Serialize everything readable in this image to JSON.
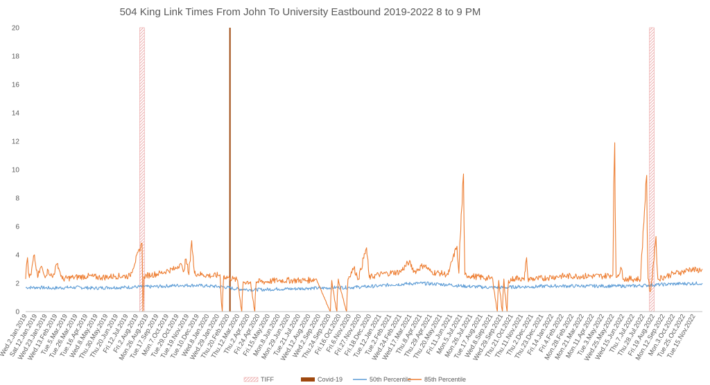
{
  "chart_data": {
    "type": "line",
    "title": "504 King Link Times From John To University Eastbound 2019-2022 8 to 9 PM",
    "xlabel": "",
    "ylabel": "",
    "x_start": "2019-01-02",
    "x_end": "2022-12-31",
    "ylim": [
      0,
      20
    ],
    "yticks": [
      0,
      2,
      4,
      6,
      8,
      10,
      12,
      14,
      16,
      18,
      20
    ],
    "grid": false,
    "legend_position": "bottom",
    "x_tick_labels": [
      "Wed.2.Jan.2019",
      "Sat.12.Jan.2019",
      "Wed.23.Jan.2019",
      "Wed.13.Feb.2019",
      "Tue.5.Mar.2019",
      "Tue.26.Mar.2019",
      "Tue.16.Apr.2019",
      "Wed.8.May.2019",
      "Thu.30.May.2019",
      "Thu.20.Jun.2019",
      "Fri.12.Jul.2019",
      "Fri.2.Aug.2019",
      "Mon.26.Aug.2019",
      "Tue.17.Sep.2019",
      "Mon.7.Oct.2019",
      "Tue.29.Oct.2019",
      "Tue.19.Nov.2019",
      "Tue.10.Dec.2019",
      "Wed.8.Jan.2020",
      "Wed.29.Jan.2020",
      "Thu.20.Feb.2020",
      "Thu.12.Mar.2020",
      "Thu.2.Apr.2020",
      "Fri.24.Apr.2020",
      "Fri.15.May.2020",
      "Mon.8.Jun.2020",
      "Mon.29.Jun.2020",
      "Tue.21.Jul.2020",
      "Wed.12.Aug.2020",
      "Wed.2.Sep.2020",
      "Thu.24.Sep.2020",
      "Fri.16.Oct.2020",
      "Fri.6.Nov.2020",
      "Fri.27.Nov.2020",
      "Fri.18.Dec.2020",
      "Tue.12.Jan.2021",
      "Tue.2.Feb.2021",
      "Wed.24.Feb.2021",
      "Wed.17.Mar.2021",
      "Thu.8.Apr.2021",
      "Thu.29.Apr.2021",
      "Thu.20.May.2021",
      "Fri.11.Jun.2021",
      "Mon.5.Jul.2021",
      "Mon.26.Jul.2021",
      "Tue.17.Aug.2021",
      "Wed.8.Sep.2021",
      "Wed.29.Sep.2021",
      "Thu.21.Oct.2021",
      "Thu.11.Nov.2021",
      "Thu.2.Dec.2021",
      "Thu.23.Dec.2021",
      "Fri.14.Jan.2022",
      "Fri.4.Feb.2022",
      "Mon.28.Feb.2022",
      "Mon.21.Mar.2022",
      "Mon.11.Apr.2022",
      "Tue.3.May.2022",
      "Wed.25.May.2022",
      "Wed.15.Jun.2022",
      "Thu.7.Jul.2022",
      "Thu.28.Jul.2022",
      "Fri.19.Aug.2022",
      "Mon.12.Sep.2022",
      "Mon.3.Oct.2022",
      "Tue.25.Oct.2022",
      "Tue.15.Nov.2022"
    ],
    "bands": [
      {
        "name": "TIFF",
        "x": "2019-09-05",
        "x2": "2019-09-15",
        "y": 20
      },
      {
        "name": "TIFF",
        "x": "2022-09-08",
        "x2": "2022-09-18",
        "y": 20
      }
    ],
    "bars": [
      {
        "name": "Covid-19",
        "x": "2020-03-16",
        "x2": "2020-03-19",
        "y": 20
      }
    ],
    "series": [
      {
        "name": "50th Percentile",
        "color": "#5b9bd5",
        "points": [
          [
            "2019-01-02",
            1.7
          ],
          [
            "2019-02-01",
            1.7
          ],
          [
            "2019-03-01",
            1.65
          ],
          [
            "2019-04-01",
            1.7
          ],
          [
            "2019-05-01",
            1.7
          ],
          [
            "2019-06-01",
            1.65
          ],
          [
            "2019-07-01",
            1.7
          ],
          [
            "2019-08-01",
            1.7
          ],
          [
            "2019-09-01",
            1.75
          ],
          [
            "2019-10-01",
            1.75
          ],
          [
            "2019-11-01",
            1.8
          ],
          [
            "2019-12-01",
            1.85
          ],
          [
            "2020-01-01",
            1.85
          ],
          [
            "2020-02-01",
            1.8
          ],
          [
            "2020-03-01",
            1.75
          ],
          [
            "2020-04-01",
            1.6
          ],
          [
            "2020-05-01",
            1.55
          ],
          [
            "2020-06-01",
            1.55
          ],
          [
            "2020-07-01",
            1.6
          ],
          [
            "2020-08-01",
            1.6
          ],
          [
            "2020-09-01",
            1.65
          ],
          [
            "2020-10-01",
            1.65
          ],
          [
            "2020-11-01",
            1.7
          ],
          [
            "2020-12-01",
            1.7
          ],
          [
            "2021-01-01",
            1.75
          ],
          [
            "2021-02-01",
            1.8
          ],
          [
            "2021-03-01",
            1.9
          ],
          [
            "2021-04-01",
            1.95
          ],
          [
            "2021-05-01",
            2.0
          ],
          [
            "2021-06-01",
            1.95
          ],
          [
            "2021-07-01",
            1.9
          ],
          [
            "2021-08-01",
            1.8
          ],
          [
            "2021-09-01",
            1.75
          ],
          [
            "2021-10-01",
            1.7
          ],
          [
            "2021-11-01",
            1.7
          ],
          [
            "2021-12-01",
            1.75
          ],
          [
            "2022-01-01",
            1.75
          ],
          [
            "2022-02-01",
            1.8
          ],
          [
            "2022-03-01",
            1.8
          ],
          [
            "2022-04-01",
            1.8
          ],
          [
            "2022-05-01",
            1.8
          ],
          [
            "2022-06-01",
            1.8
          ],
          [
            "2022-07-01",
            1.8
          ],
          [
            "2022-08-01",
            1.8
          ],
          [
            "2022-09-01",
            1.85
          ],
          [
            "2022-10-01",
            1.9
          ],
          [
            "2022-11-01",
            1.95
          ],
          [
            "2022-12-31",
            2.0
          ]
        ]
      },
      {
        "name": "85th Percentile",
        "color": "#ed7d31",
        "points": [
          [
            "2019-01-02",
            2.3
          ],
          [
            "2019-01-06",
            3.8
          ],
          [
            "2019-01-10",
            2.4
          ],
          [
            "2019-01-14",
            2.6
          ],
          [
            "2019-01-21",
            4.0
          ],
          [
            "2019-01-28",
            2.4
          ],
          [
            "2019-02-05",
            3.2
          ],
          [
            "2019-02-12",
            2.5
          ],
          [
            "2019-02-20",
            2.9
          ],
          [
            "2019-03-01",
            2.4
          ],
          [
            "2019-03-12",
            3.4
          ],
          [
            "2019-03-22",
            2.3
          ],
          [
            "2019-04-15",
            2.4
          ],
          [
            "2019-05-15",
            2.5
          ],
          [
            "2019-06-15",
            2.4
          ],
          [
            "2019-07-15",
            2.5
          ],
          [
            "2019-08-15",
            2.5
          ],
          [
            "2019-09-10",
            4.8
          ],
          [
            "2019-09-12",
            0.0
          ],
          [
            "2019-09-14",
            2.5
          ],
          [
            "2019-10-01",
            2.6
          ],
          [
            "2019-10-20",
            2.7
          ],
          [
            "2019-11-05",
            2.9
          ],
          [
            "2019-11-20",
            3.0
          ],
          [
            "2019-12-02",
            3.4
          ],
          [
            "2019-12-08",
            2.8
          ],
          [
            "2019-12-14",
            3.7
          ],
          [
            "2019-12-20",
            2.6
          ],
          [
            "2019-12-26",
            5.0
          ],
          [
            "2020-01-01",
            2.7
          ],
          [
            "2020-01-20",
            2.6
          ],
          [
            "2020-02-10",
            2.5
          ],
          [
            "2020-02-25",
            2.6
          ],
          [
            "2020-03-01",
            0.0
          ],
          [
            "2020-03-04",
            2.5
          ],
          [
            "2020-03-25",
            2.3
          ],
          [
            "2020-04-03",
            2.2
          ],
          [
            "2020-04-12",
            0.0
          ],
          [
            "2020-04-15",
            2.1
          ],
          [
            "2020-05-01",
            2.1
          ],
          [
            "2020-05-10",
            0.0
          ],
          [
            "2020-05-13",
            2.1
          ],
          [
            "2020-06-01",
            2.1
          ],
          [
            "2020-07-01",
            2.2
          ],
          [
            "2020-08-01",
            2.2
          ],
          [
            "2020-09-01",
            2.2
          ],
          [
            "2020-09-20",
            2.3
          ],
          [
            "2020-10-20",
            0.0
          ],
          [
            "2020-10-23",
            2.2
          ],
          [
            "2020-11-03",
            0.0
          ],
          [
            "2020-11-06",
            2.3
          ],
          [
            "2020-11-24",
            0.0
          ],
          [
            "2020-11-27",
            2.3
          ],
          [
            "2020-12-10",
            3.1
          ],
          [
            "2020-12-20",
            2.3
          ],
          [
            "2021-01-06",
            4.5
          ],
          [
            "2021-01-12",
            2.4
          ],
          [
            "2021-02-01",
            2.6
          ],
          [
            "2021-02-20",
            2.7
          ],
          [
            "2021-03-20",
            2.8
          ],
          [
            "2021-04-08",
            3.5
          ],
          [
            "2021-04-20",
            2.8
          ],
          [
            "2021-05-10",
            3.3
          ],
          [
            "2021-05-25",
            2.8
          ],
          [
            "2021-06-15",
            2.7
          ],
          [
            "2021-07-01",
            2.6
          ],
          [
            "2021-07-20",
            4.6
          ],
          [
            "2021-07-24",
            2.7
          ],
          [
            "2021-08-03",
            9.7
          ],
          [
            "2021-08-06",
            2.6
          ],
          [
            "2021-08-20",
            2.5
          ],
          [
            "2021-09-15",
            2.4
          ],
          [
            "2021-10-05",
            2.3
          ],
          [
            "2021-10-15",
            0.0
          ],
          [
            "2021-10-18",
            2.2
          ],
          [
            "2021-10-26",
            0.0
          ],
          [
            "2021-10-29",
            2.3
          ],
          [
            "2021-11-05",
            0.0
          ],
          [
            "2021-11-08",
            2.2
          ],
          [
            "2021-11-20",
            2.3
          ],
          [
            "2021-12-01",
            2.4
          ],
          [
            "2021-12-12",
            2.2
          ],
          [
            "2021-12-17",
            3.8
          ],
          [
            "2021-12-20",
            2.3
          ],
          [
            "2022-01-10",
            2.3
          ],
          [
            "2022-02-01",
            2.4
          ],
          [
            "2022-03-01",
            2.5
          ],
          [
            "2022-04-01",
            2.5
          ],
          [
            "2022-05-01",
            2.5
          ],
          [
            "2022-06-01",
            2.5
          ],
          [
            "2022-06-21",
            2.6
          ],
          [
            "2022-06-25",
            11.9
          ],
          [
            "2022-06-28",
            2.4
          ],
          [
            "2022-07-10",
            3.0
          ],
          [
            "2022-07-15",
            2.3
          ],
          [
            "2022-08-20",
            2.3
          ],
          [
            "2022-09-02",
            9.6
          ],
          [
            "2022-09-05",
            2.3
          ],
          [
            "2022-09-10",
            1.4
          ],
          [
            "2022-09-14",
            2.4
          ],
          [
            "2022-09-22",
            5.3
          ],
          [
            "2022-09-26",
            2.3
          ],
          [
            "2022-10-15",
            2.5
          ],
          [
            "2022-11-01",
            2.7
          ],
          [
            "2022-11-20",
            2.8
          ],
          [
            "2022-12-05",
            3.0
          ],
          [
            "2022-12-20",
            2.9
          ],
          [
            "2022-12-31",
            3.0
          ]
        ]
      }
    ],
    "legend": [
      {
        "label": "TIFF",
        "kind": "hatched",
        "color": "#f4b6b6"
      },
      {
        "label": "Covid-19",
        "kind": "bar",
        "color": "#9e480e"
      },
      {
        "label": "50th Percentile",
        "kind": "line",
        "color": "#5b9bd5"
      },
      {
        "label": "85th Percentile",
        "kind": "line",
        "color": "#ed7d31"
      }
    ]
  }
}
